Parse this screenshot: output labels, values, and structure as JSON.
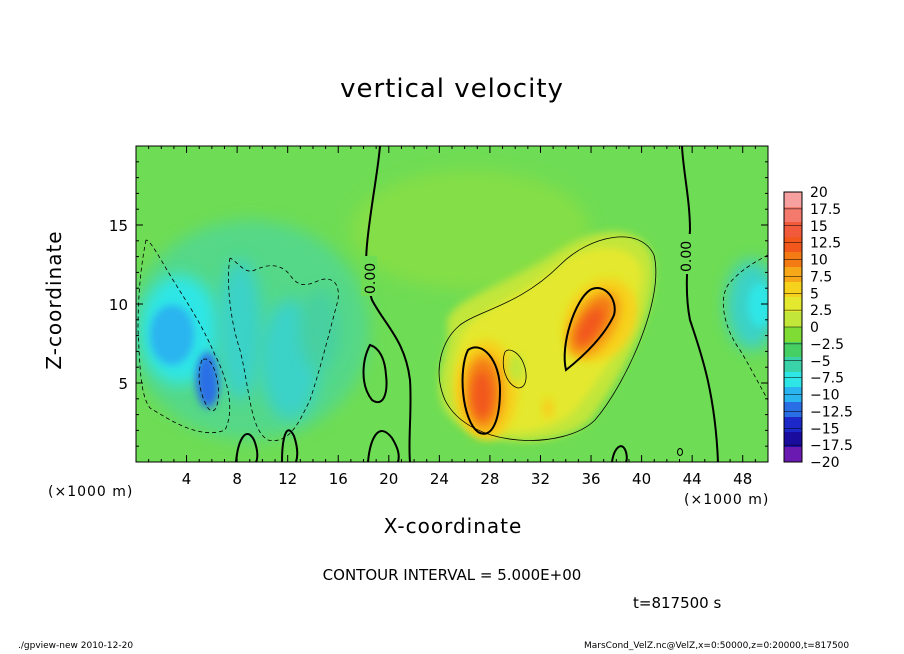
{
  "chart_data": {
    "type": "heatmap",
    "title": "vertical velocity",
    "xlabel": "X-coordinate",
    "ylabel": "Z-coordinate",
    "x_unit": "(×1000 m)",
    "y_unit": "(×1000 m)",
    "xlim": [
      0,
      50
    ],
    "ylim": [
      0,
      20
    ],
    "x_ticks": [
      4,
      8,
      12,
      16,
      20,
      24,
      28,
      32,
      36,
      40,
      44,
      48
    ],
    "y_ticks": [
      5,
      10,
      15
    ],
    "colorbar": {
      "levels": [
        20,
        17.5,
        15,
        12.5,
        10,
        7.5,
        5,
        2.5,
        0,
        -2.5,
        -5,
        -7.5,
        -10,
        -12.5,
        -15,
        -17.5,
        -20
      ],
      "labels": [
        "20",
        "17.5",
        "15",
        "12.5",
        "10",
        "7.5",
        "5",
        "2.5",
        "0",
        "−2.5",
        "−5",
        "−7.5",
        "−10",
        "−12.5",
        "−15",
        "−17.5",
        "−20"
      ],
      "colors": [
        "#f7a0a0",
        "#f47a6e",
        "#f25a3c",
        "#f2581c",
        "#f47a14",
        "#f6a818",
        "#f6d21c",
        "#e4e82e",
        "#c2e63a",
        "#7edc34",
        "#46d064",
        "#3ad2a8",
        "#2ee6e6",
        "#2ab4f0",
        "#2a6ee6",
        "#1c28c8",
        "#1a0c9c",
        "#6a1ab0"
      ]
    },
    "contour_labels": [
      "0.00",
      "0.00"
    ],
    "features": [
      {
        "kind": "updraft",
        "x": 27.5,
        "z": 6.0,
        "max": 17.5
      },
      {
        "kind": "updraft",
        "x": 36.0,
        "z": 9.0,
        "max": 15
      },
      {
        "kind": "downdraft",
        "x": 6.0,
        "z": 5.0,
        "min": -10
      },
      {
        "kind": "downdraft",
        "x": 3.0,
        "z": 8.5,
        "min": -7.5
      },
      {
        "kind": "downdraft",
        "x": 48.5,
        "z": 10.0,
        "min": -5
      }
    ]
  },
  "contour_interval_text": "CONTOUR INTERVAL = 5.000E+00",
  "time_text": "t=817500 s",
  "footer_left": "./gpview-new   2010-12-20",
  "footer_right": "MarsCond_VelZ.nc@VelZ,x=0:50000,z=0:20000,t=817500"
}
